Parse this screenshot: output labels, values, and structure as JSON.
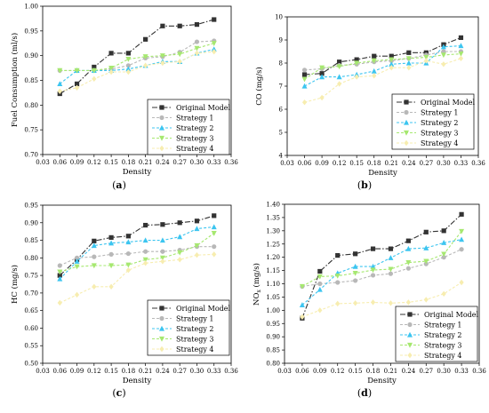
{
  "chart_data": [
    {
      "type": "line",
      "panel_label": [
        "(",
        "a",
        ")"
      ],
      "xlabel": "Density",
      "ylabel": "Fuel Consumption (ml/s)",
      "xlim": [
        0.03,
        0.36
      ],
      "ylim": [
        0.7,
        1.0
      ],
      "xticks": [
        0.03,
        0.06,
        0.09,
        0.12,
        0.15,
        0.18,
        0.21,
        0.24,
        0.27,
        0.3,
        0.33,
        0.36
      ],
      "xtick_labels": [
        "0.03",
        "0.06",
        "0.09",
        "0.12",
        "0.15",
        "0.18",
        "0.21",
        "0.24",
        "0.27",
        "0.30",
        "0.33",
        "0.36"
      ],
      "yticks": [
        0.7,
        0.75,
        0.8,
        0.85,
        0.9,
        0.95,
        1.0
      ],
      "ytick_labels": [
        "0.70",
        "0.75",
        "0.80",
        "0.85",
        "0.90",
        "0.95",
        "1.00"
      ],
      "legend_position": "bottom-right",
      "x": [
        0.06,
        0.09,
        0.12,
        0.15,
        0.18,
        0.21,
        0.24,
        0.27,
        0.3,
        0.33
      ],
      "series": [
        {
          "name": "Original Model",
          "values": [
            0.823,
            0.843,
            0.877,
            0.905,
            0.905,
            0.933,
            0.96,
            0.96,
            0.963,
            0.973
          ]
        },
        {
          "name": "Strategy 1",
          "values": [
            0.87,
            0.87,
            0.87,
            0.873,
            0.88,
            0.895,
            0.898,
            0.907,
            0.928,
            0.93
          ]
        },
        {
          "name": "Strategy 2",
          "values": [
            0.843,
            0.87,
            0.87,
            0.87,
            0.873,
            0.88,
            0.888,
            0.888,
            0.905,
            0.913
          ]
        },
        {
          "name": "Strategy 3",
          "values": [
            0.87,
            0.87,
            0.87,
            0.875,
            0.893,
            0.898,
            0.9,
            0.903,
            0.915,
            0.925
          ]
        },
        {
          "name": "Strategy 4",
          "values": [
            0.828,
            0.835,
            0.853,
            0.867,
            0.867,
            0.88,
            0.885,
            0.888,
            0.905,
            0.908
          ]
        }
      ]
    },
    {
      "type": "line",
      "panel_label": [
        "(",
        "b",
        ")"
      ],
      "xlabel": "Density",
      "ylabel": "CO (mg/s)",
      "xlim": [
        0.03,
        0.36
      ],
      "ylim": [
        4,
        10
      ],
      "xticks": [
        0.03,
        0.06,
        0.09,
        0.12,
        0.15,
        0.18,
        0.21,
        0.24,
        0.27,
        0.3,
        0.33,
        0.36
      ],
      "xtick_labels": [
        "0.03",
        "0.06",
        "0.09",
        "0.12",
        "0.15",
        "0.18",
        "0.21",
        "0.24",
        "0.27",
        "0.30",
        "0.33",
        "0.36"
      ],
      "yticks": [
        4,
        5,
        6,
        7,
        8,
        9,
        10
      ],
      "ytick_labels": [
        "4",
        "5",
        "6",
        "7",
        "8",
        "9",
        "10"
      ],
      "legend_position": "bottom-right",
      "x": [
        0.06,
        0.09,
        0.12,
        0.15,
        0.18,
        0.21,
        0.24,
        0.27,
        0.3,
        0.33
      ],
      "series": [
        {
          "name": "Original Model",
          "values": [
            7.5,
            7.55,
            8.05,
            8.15,
            8.3,
            8.3,
            8.45,
            8.45,
            8.8,
            9.1
          ]
        },
        {
          "name": "Strategy 1",
          "values": [
            7.7,
            7.75,
            7.9,
            7.95,
            8.05,
            8.1,
            8.2,
            8.35,
            8.5,
            8.5
          ]
        },
        {
          "name": "Strategy 2",
          "values": [
            7.0,
            7.4,
            7.4,
            7.5,
            7.65,
            7.95,
            8.0,
            8.0,
            8.7,
            8.75
          ]
        },
        {
          "name": "Strategy 3",
          "values": [
            7.3,
            7.8,
            7.85,
            8.0,
            8.1,
            8.15,
            8.2,
            8.25,
            8.35,
            8.4
          ]
        },
        {
          "name": "Strategy 4",
          "values": [
            6.3,
            6.5,
            7.1,
            7.4,
            7.45,
            7.8,
            7.8,
            8.1,
            7.95,
            8.2
          ]
        }
      ]
    },
    {
      "type": "line",
      "panel_label": [
        "(",
        "c",
        ")"
      ],
      "xlabel": "Density",
      "ylabel": "HC (mg/s)",
      "xlim": [
        0.03,
        0.36
      ],
      "ylim": [
        0.5,
        0.95
      ],
      "xticks": [
        0.03,
        0.06,
        0.09,
        0.12,
        0.15,
        0.18,
        0.21,
        0.24,
        0.27,
        0.3,
        0.33,
        0.36
      ],
      "xtick_labels": [
        "0.03",
        "0.06",
        "0.09",
        "0.12",
        "0.15",
        "0.18",
        "0.21",
        "0.24",
        "0.27",
        "0.30",
        "0.33",
        "0.36"
      ],
      "yticks": [
        0.5,
        0.55,
        0.6,
        0.65,
        0.7,
        0.75,
        0.8,
        0.85,
        0.9,
        0.95
      ],
      "ytick_labels": [
        "0.50",
        "0.55",
        "0.60",
        "0.65",
        "0.70",
        "0.75",
        "0.80",
        "0.85",
        "0.90",
        "0.95"
      ],
      "legend_position": "bottom-right",
      "x": [
        0.06,
        0.09,
        0.12,
        0.15,
        0.18,
        0.21,
        0.24,
        0.27,
        0.3,
        0.33
      ],
      "series": [
        {
          "name": "Original Model",
          "values": [
            0.75,
            0.795,
            0.848,
            0.858,
            0.862,
            0.893,
            0.895,
            0.9,
            0.905,
            0.92
          ]
        },
        {
          "name": "Strategy 1",
          "values": [
            0.778,
            0.8,
            0.803,
            0.81,
            0.812,
            0.818,
            0.818,
            0.822,
            0.832,
            0.832
          ]
        },
        {
          "name": "Strategy 2",
          "values": [
            0.74,
            0.79,
            0.835,
            0.842,
            0.845,
            0.85,
            0.85,
            0.86,
            0.883,
            0.888
          ]
        },
        {
          "name": "Strategy 3",
          "values": [
            0.76,
            0.775,
            0.778,
            0.778,
            0.78,
            0.795,
            0.8,
            0.815,
            0.835,
            0.87
          ]
        },
        {
          "name": "Strategy 4",
          "values": [
            0.672,
            0.695,
            0.718,
            0.718,
            0.765,
            0.785,
            0.79,
            0.795,
            0.808,
            0.81
          ]
        }
      ]
    },
    {
      "type": "line",
      "panel_label": [
        "(",
        "d",
        ")"
      ],
      "xlabel": "Density",
      "ylabel": [
        "NO",
        "x",
        " (mg/s)"
      ],
      "xlim": [
        0.03,
        0.36
      ],
      "ylim": [
        0.8,
        1.4
      ],
      "xticks": [
        0.03,
        0.06,
        0.09,
        0.12,
        0.15,
        0.18,
        0.21,
        0.24,
        0.27,
        0.3,
        0.33,
        0.36
      ],
      "xtick_labels": [
        "0.03",
        "0.06",
        "0.09",
        "0.12",
        "0.15",
        "0.18",
        "0.21",
        "0.24",
        "0.27",
        "0.30",
        "0.33",
        "0.36"
      ],
      "yticks": [
        0.8,
        0.85,
        0.9,
        0.95,
        1.0,
        1.05,
        1.1,
        1.15,
        1.2,
        1.25,
        1.3,
        1.35,
        1.4
      ],
      "ytick_labels": [
        "0.80",
        "0.85",
        "0.90",
        "0.95",
        "1.00",
        "1.05",
        "1.10",
        "1.15",
        "1.20",
        "1.25",
        "1.30",
        "1.35",
        "1.40"
      ],
      "legend_position": "bottom-right",
      "x": [
        0.06,
        0.09,
        0.12,
        0.15,
        0.18,
        0.21,
        0.24,
        0.27,
        0.3,
        0.33
      ],
      "series": [
        {
          "name": "Original Model",
          "values": [
            0.97,
            1.147,
            1.207,
            1.213,
            1.232,
            1.232,
            1.262,
            1.295,
            1.3,
            1.362
          ]
        },
        {
          "name": "Strategy 1",
          "values": [
            1.09,
            1.1,
            1.105,
            1.112,
            1.132,
            1.138,
            1.158,
            1.175,
            1.2,
            1.23
          ]
        },
        {
          "name": "Strategy 2",
          "values": [
            1.02,
            1.078,
            1.14,
            1.165,
            1.165,
            1.198,
            1.232,
            1.235,
            1.255,
            1.267
          ]
        },
        {
          "name": "Strategy 3",
          "values": [
            1.09,
            1.127,
            1.13,
            1.14,
            1.152,
            1.155,
            1.18,
            1.185,
            1.212,
            1.298
          ]
        },
        {
          "name": "Strategy 4",
          "values": [
            0.975,
            1.0,
            1.025,
            1.027,
            1.03,
            1.027,
            1.03,
            1.04,
            1.062,
            1.105
          ]
        }
      ]
    }
  ],
  "series_styles": [
    {
      "color": "#333333",
      "marker": "square",
      "dash": "6,2,1.5,2"
    },
    {
      "color": "#b8b8b8",
      "marker": "circle",
      "dash": "3,2"
    },
    {
      "color": "#3cc5f0",
      "marker": "triangle-up",
      "dash": "3,2"
    },
    {
      "color": "#a6e870",
      "marker": "triangle-down",
      "dash": "3,2"
    },
    {
      "color": "#f7edb0",
      "marker": "diamond",
      "dash": "3,2"
    }
  ]
}
